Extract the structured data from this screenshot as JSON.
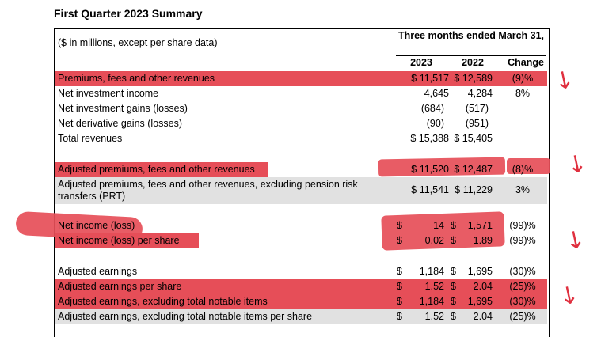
{
  "title": "First Quarter 2023 Summary",
  "header": {
    "note": "($ in millions, except per share data)",
    "period": "Three months ended March 31,",
    "col_2023": "2023",
    "col_2022": "2022",
    "col_change": "Change"
  },
  "rows": [
    {
      "label": "Premiums, fees and other revenues",
      "v2023": "$ 11,517",
      "v2022": "$ 12,589",
      "change": "(9)%"
    },
    {
      "label": "Net investment income",
      "v2023": "4,645",
      "v2022": "4,284",
      "change": "8%"
    },
    {
      "label": "Net investment gains (losses)",
      "v2023": "(684)",
      "v2022": "(517)",
      "change": ""
    },
    {
      "label": "Net derivative gains (losses)",
      "v2023": "(90)",
      "v2022": "(951)",
      "change": ""
    },
    {
      "label": "Total revenues",
      "v2023": "$ 15,388",
      "v2022": "$ 15,405",
      "change": ""
    },
    {
      "label": "Adjusted premiums, fees and other revenues",
      "v2023": "$ 11,520",
      "v2022": "$ 12,487",
      "change": "(8)%"
    },
    {
      "label": "Adjusted premiums, fees and other revenues, excluding pension risk transfers (PRT)",
      "v2023": "$ 11,541",
      "v2022": "$ 11,229",
      "change": "3%"
    },
    {
      "label": "Net income (loss)",
      "d1": "$",
      "v2023": "14",
      "d2": "$",
      "v2022": "1,571",
      "change": "(99)%"
    },
    {
      "label": "Net income (loss) per share",
      "d1": "$",
      "v2023": "0.02",
      "d2": "$",
      "v2022": "1.89",
      "change": "(99)%"
    },
    {
      "label": "Adjusted earnings",
      "d1": "$",
      "v2023": "1,184",
      "d2": "$",
      "v2022": "1,695",
      "change": "(30)%"
    },
    {
      "label": "Adjusted earnings per share",
      "d1": "$",
      "v2023": "1.52",
      "d2": "$",
      "v2022": "2.04",
      "change": "(25)%"
    },
    {
      "label": "Adjusted earnings, excluding total notable items",
      "d1": "$",
      "v2023": "1,184",
      "d2": "$",
      "v2022": "1,695",
      "change": "(30)%"
    },
    {
      "label": "Adjusted earnings, excluding total notable items per share",
      "d1": "$",
      "v2023": "1.52",
      "d2": "$",
      "v2022": "2.04",
      "change": "(25)%"
    }
  ],
  "colors": {
    "highlight": "#e64e58",
    "shade": "#e1e1e1",
    "arrow": "#e0303f"
  },
  "icons": {
    "arrow": "hand-drawn-down-arrow"
  }
}
